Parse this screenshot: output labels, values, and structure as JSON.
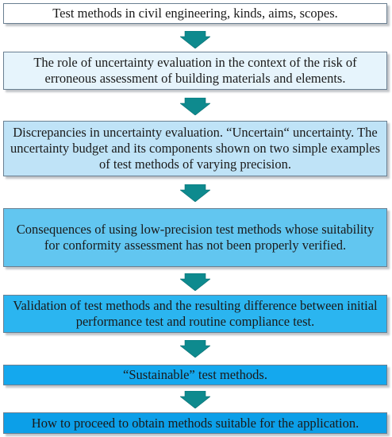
{
  "flow": {
    "steps": [
      {
        "text": "Test methods in civil engineering, kinds, aims, scopes.",
        "fill": "#ffffff"
      },
      {
        "text": "The role of uncertainty evaluation in the context of the risk of erroneous assessment of building materials and elements.",
        "fill": "#e6f4fc"
      },
      {
        "text": "Discrepancies in uncertainty evaluation. “Uncertain“ uncertainty. The uncertainty budget and its components shown on two simple examples of test methods of varying precision.",
        "fill": "#bfe3f7"
      },
      {
        "text": "Consequences of using low-precision test methods whose suitability for conformity assessment has not been properly verified.",
        "fill": "#62c6f0"
      },
      {
        "text": "Validation of test methods and the resulting difference between initial performance test and routine compliance test.",
        "fill": "#2bb5f0"
      },
      {
        "text": "“Sustainable” test methods.",
        "fill": "#14a8ee"
      },
      {
        "text": "How to proceed to obtain methods suitable for the application.",
        "fill": "#0c9fe8"
      }
    ],
    "arrow_color": "#0e8a8e"
  }
}
